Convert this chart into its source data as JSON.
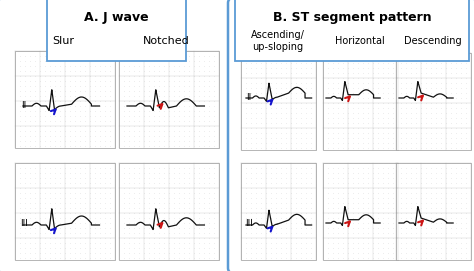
{
  "title_a": "A. J wave",
  "title_b": "B. ST segment pattern",
  "label_slur": "Slur",
  "label_notched": "Notched",
  "label_ascending": "Ascending/\nup-sloping",
  "label_horizontal": "Horizontal",
  "label_descending": "Descending",
  "bg_color": "#ffffff",
  "grid_dot_color": "#bbbbbb",
  "grid_line_color": "#999999",
  "ecg_color": "#111111",
  "box_edge_color": "#5b9bd5",
  "box_fill": "#ffffff",
  "panel_fill": "#f8f8f8",
  "arrow_blue": "#1515cc",
  "arrow_red": "#cc1515",
  "figsize": [
    4.74,
    2.71
  ],
  "dpi": 100
}
